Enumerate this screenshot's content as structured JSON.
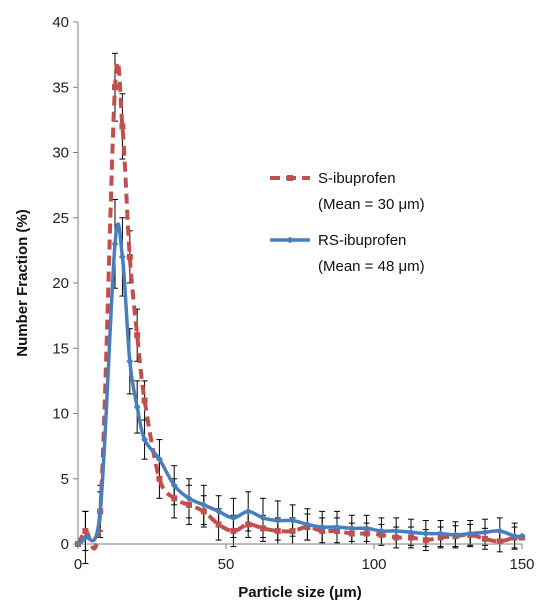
{
  "chart_data": {
    "type": "line",
    "title": "",
    "xlabel": "Particle size (μm)",
    "ylabel": "Number Fraction (%)",
    "xlim": [
      0,
      150
    ],
    "ylim": [
      0,
      40
    ],
    "xticks": [
      "0",
      "50",
      "100",
      "150"
    ],
    "yticks": [
      "0",
      "5",
      "10",
      "15",
      "20",
      "25",
      "30",
      "35",
      "40"
    ],
    "grid": false,
    "legend_position": "right",
    "series": [
      {
        "name": "S-ibuprofen",
        "legend_sub": "(Mean = 30 μm)",
        "color": "#c0504d",
        "style": "dashed",
        "marker": "square",
        "x": [
          0,
          2.5,
          7.5,
          12.5,
          15,
          17.5,
          20,
          22.5,
          27.5,
          32.5,
          37.5,
          42.5,
          47.5,
          52.5,
          57.5,
          62.5,
          67.5,
          72.5,
          77.5,
          82.5,
          87.5,
          92.5,
          97.5,
          102.5,
          107.5,
          112.5,
          117.5,
          122.5,
          127.5,
          132.5,
          137.5,
          142.5,
          147.5,
          150
        ],
        "values": [
          0,
          1.0,
          2.5,
          35.0,
          32.0,
          22.0,
          16.0,
          11.0,
          5.0,
          3.5,
          3.0,
          2.5,
          1.5,
          1.0,
          1.5,
          1.2,
          1.0,
          1.0,
          1.3,
          1.0,
          1.0,
          0.8,
          0.8,
          0.7,
          0.5,
          0.5,
          0.3,
          0.5,
          0.6,
          0.7,
          0.4,
          0.2,
          0.5,
          0.5
        ],
        "error": [
          0,
          1.5,
          1.5,
          2.6,
          2.5,
          2.0,
          2.0,
          1.5,
          1.5,
          1.5,
          1.5,
          1.2,
          1.2,
          1.2,
          1.0,
          1.0,
          1.0,
          1.0,
          1.0,
          1.0,
          1.0,
          0.8,
          0.8,
          0.8,
          0.8,
          0.8,
          0.8,
          0.8,
          0.8,
          0.8,
          0.8,
          0.8,
          0.8,
          0
        ]
      },
      {
        "name": "RS-ibuprofen",
        "legend_sub": "(Mean = 48 μm)",
        "color": "#4a7ebb",
        "style": "solid",
        "marker": "diamond",
        "x": [
          0,
          2.5,
          7.5,
          12.5,
          15,
          17.5,
          20,
          22.5,
          27.5,
          32.5,
          37.5,
          42.5,
          47.5,
          52.5,
          57.5,
          62.5,
          67.5,
          72.5,
          77.5,
          82.5,
          87.5,
          92.5,
          97.5,
          102.5,
          107.5,
          112.5,
          117.5,
          122.5,
          127.5,
          132.5,
          137.5,
          142.5,
          147.5,
          150
        ],
        "values": [
          0,
          0.5,
          2.5,
          23.0,
          22.0,
          14.0,
          10.5,
          8.0,
          6.5,
          4.5,
          3.5,
          3.0,
          2.5,
          2.0,
          2.5,
          2.0,
          1.8,
          1.8,
          1.5,
          1.3,
          1.3,
          1.2,
          1.2,
          1.0,
          1.0,
          0.9,
          0.8,
          0.8,
          0.7,
          0.8,
          0.9,
          1.0,
          0.6,
          0.6
        ],
        "error": [
          0,
          2.0,
          2.0,
          3.4,
          3.0,
          2.5,
          2.0,
          1.5,
          1.5,
          1.5,
          1.5,
          1.5,
          1.2,
          1.5,
          1.5,
          1.5,
          1.5,
          1.2,
          1.2,
          1.2,
          1.2,
          1.0,
          1.0,
          1.0,
          1.0,
          1.0,
          1.0,
          1.0,
          1.0,
          1.0,
          1.0,
          1.0,
          1.0,
          0
        ]
      }
    ]
  }
}
